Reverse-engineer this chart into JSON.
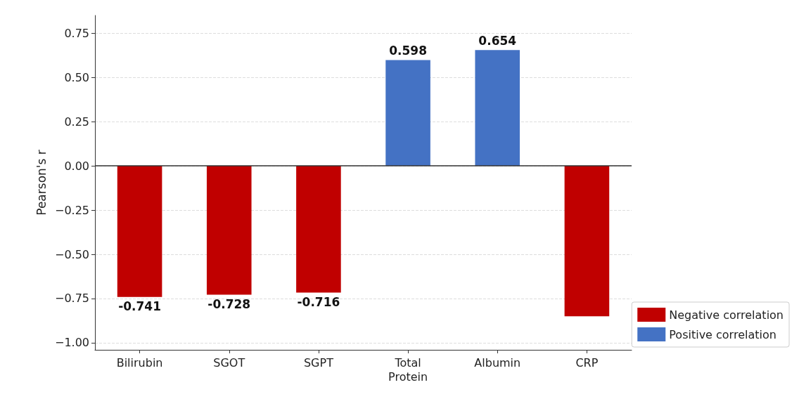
{
  "chart_data": {
    "type": "bar",
    "ylabel": "Pearson's r",
    "categories": [
      "Bilirubin",
      "SGOT",
      "SGPT",
      "Total\nProtein",
      "Albumin",
      "CRP"
    ],
    "series": [
      {
        "name": "Negative correlation",
        "color": "#c00000",
        "values": [
          -0.741,
          -0.728,
          -0.716,
          null,
          null,
          -0.85
        ],
        "value_labels": [
          "-0.741",
          "-0.728",
          "-0.716",
          null,
          null,
          null
        ]
      },
      {
        "name": "Positive correlation",
        "color": "#4472c4",
        "values": [
          null,
          null,
          null,
          0.598,
          0.654,
          null
        ],
        "value_labels": [
          null,
          null,
          null,
          "0.598",
          "0.654",
          null
        ]
      }
    ],
    "ylim": [
      -1.04,
      0.85
    ],
    "yticks": [
      {
        "value": -1,
        "label": "−1.00"
      },
      {
        "value": -0.75,
        "label": "−0.75"
      },
      {
        "value": -0.5,
        "label": "−0.50"
      },
      {
        "value": -0.25,
        "label": "−0.25"
      },
      {
        "value": 0,
        "label": "0.00"
      },
      {
        "value": 0.25,
        "label": "0.25"
      },
      {
        "value": 0.5,
        "label": "0.50"
      },
      {
        "value": 0.75,
        "label": "0.75"
      }
    ],
    "grid": "y",
    "ref_lines": [
      {
        "axis": "y",
        "value": 0,
        "color": "#333333"
      }
    ],
    "legend": "bottom right"
  }
}
